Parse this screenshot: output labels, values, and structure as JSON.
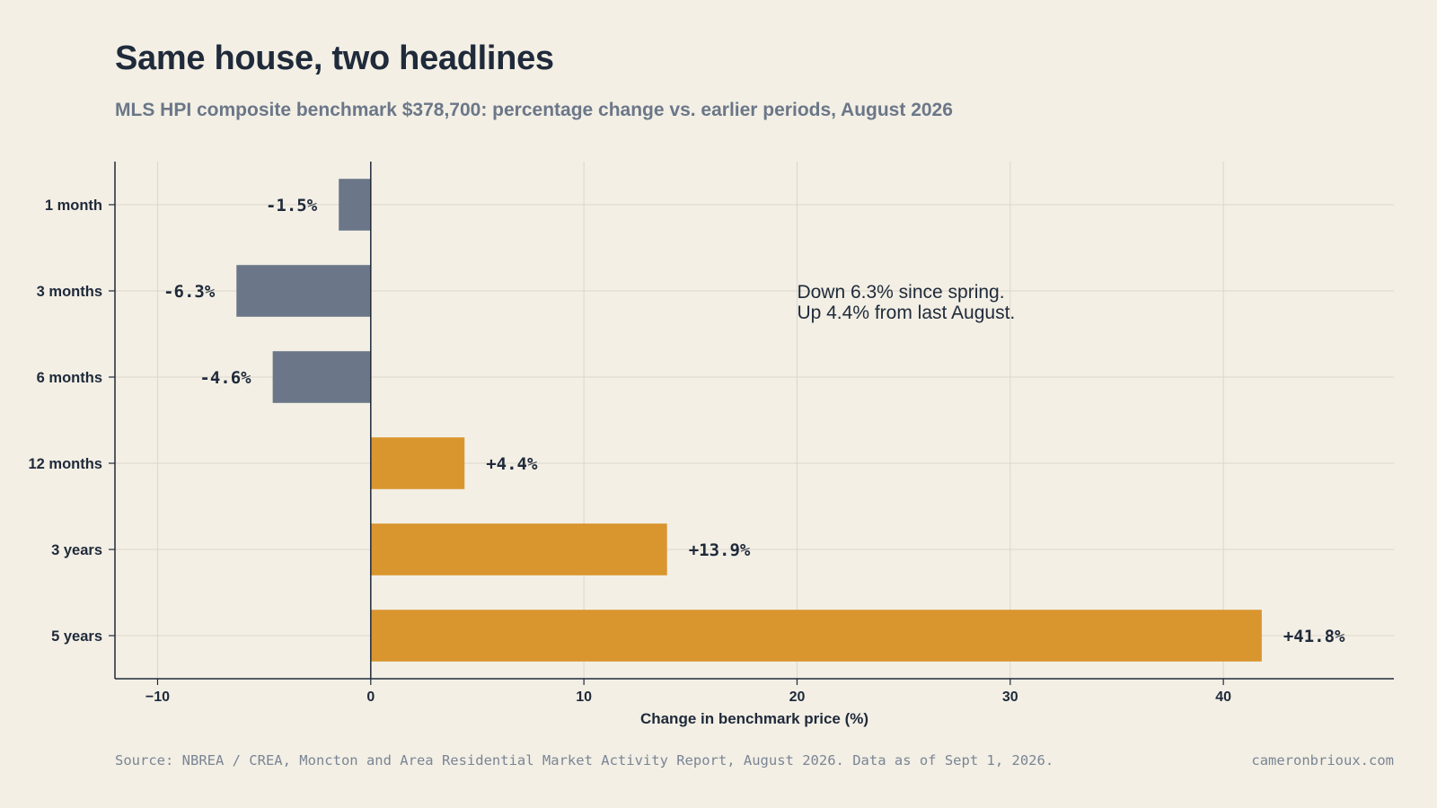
{
  "title": "Same house, two headlines",
  "subtitle": "MLS HPI composite benchmark $378,700: percentage change vs. earlier periods, August 2026",
  "footer": {
    "source": "Source: NBREA / CREA, Moncton and Area Residential Market Activity Report, August 2026. Data as of Sept 1, 2026.",
    "site": "cameronbrioux.com"
  },
  "chart_data": {
    "type": "bar",
    "orientation": "horizontal",
    "categories": [
      "1 month",
      "3 months",
      "6 months",
      "12 months",
      "3 years",
      "5 years"
    ],
    "values": [
      -1.5,
      -6.3,
      -4.6,
      4.4,
      13.9,
      41.8
    ],
    "value_labels": [
      "-1.5%",
      "-6.3%",
      "-4.6%",
      "+4.4%",
      "+13.9%",
      "+41.8%"
    ],
    "xlabel": "Change in benchmark price (%)",
    "ylabel": "",
    "xlim": [
      -12,
      48
    ],
    "xticks": [
      -10,
      0,
      10,
      20,
      30,
      40
    ],
    "xtick_labels": [
      "−10",
      "0",
      "10",
      "20",
      "30",
      "40"
    ],
    "grid": true,
    "colors": {
      "negative": "#6b7788",
      "positive": "#d9952e",
      "grid": "#dcd7cb",
      "axis": "#1f2a3a",
      "background": "#f3efe5"
    },
    "annotation": {
      "lines": [
        "Down 6.3% since spring.",
        "Up 4.4% from last August."
      ],
      "x": 20
    }
  }
}
